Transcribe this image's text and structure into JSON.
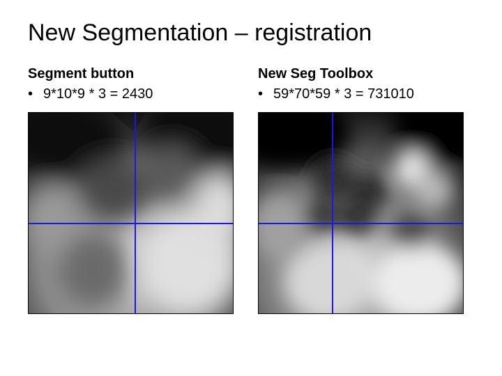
{
  "title": "New Segmentation – registration",
  "left": {
    "heading": "Segment button",
    "bullet": "9*10*9 * 3 = 2430",
    "image": {
      "top_color": "#0a0a0a",
      "mid_color": "#8a8a8a",
      "bottom_color": "#d8d8d8",
      "blob_dark": "#3c3c3c",
      "blob_light": "#c8c8c8",
      "cross_color": "#1818ee",
      "cross_h_pct": 55,
      "cross_v_pct": 52
    }
  },
  "right": {
    "heading": "New Seg Toolbox",
    "bullet": "59*70*59 * 3 = 731010",
    "image": {
      "top_color": "#060606",
      "mid_color": "#7a7a7a",
      "bottom_color": "#e2e2e2",
      "blob_dark": "#2a2a2a",
      "blob_light": "#d0d0d0",
      "cross_color": "#1818ee",
      "cross_h_pct": 55,
      "cross_v_pct": 36
    }
  }
}
